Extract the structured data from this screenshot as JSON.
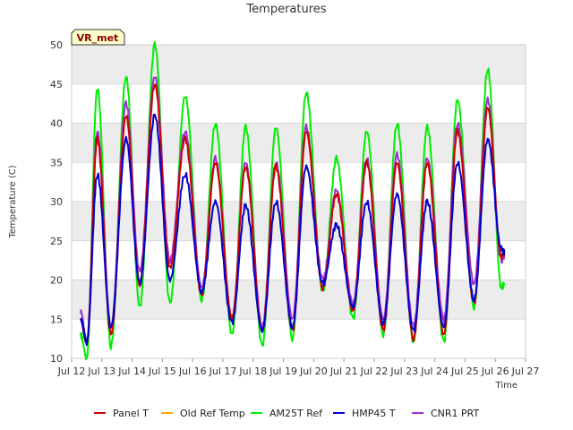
{
  "chart_data": {
    "type": "line",
    "title": "Temperatures",
    "xlabel": "Time",
    "ylabel": "Temperature (C)",
    "badge": "VR_met",
    "xlim": [
      12,
      27
    ],
    "ylim": [
      10,
      50
    ],
    "yticks": [
      10,
      15,
      20,
      25,
      30,
      35,
      40,
      45,
      50
    ],
    "xticks": [
      {
        "value": 12,
        "label": "Jul 12"
      },
      {
        "value": 13,
        "label": "Jul 13"
      },
      {
        "value": 14,
        "label": "Jul 14"
      },
      {
        "value": 15,
        "label": "Jul 15"
      },
      {
        "value": 16,
        "label": "Jul 16"
      },
      {
        "value": 17,
        "label": "Jul 17"
      },
      {
        "value": 18,
        "label": "Jul 18"
      },
      {
        "value": 19,
        "label": "Jul 19"
      },
      {
        "value": 20,
        "label": "Jul 20"
      },
      {
        "value": 21,
        "label": "Jul 21"
      },
      {
        "value": 22,
        "label": "Jul 22"
      },
      {
        "value": 23,
        "label": "Jul 23"
      },
      {
        "value": 24,
        "label": "Jul 24"
      },
      {
        "value": 25,
        "label": "Jul 25"
      },
      {
        "value": 26,
        "label": "Jul 26"
      },
      {
        "value": 27,
        "label": "Jul 27"
      }
    ],
    "band_color": "#ececec",
    "series": [
      {
        "name": "Panel T",
        "color": "#cc0000",
        "x": [
          12.3,
          12.5,
          12.85,
          13.3,
          13.8,
          14.25,
          14.75,
          15.25,
          15.75,
          16.3,
          16.75,
          17.3,
          17.75,
          18.3,
          18.75,
          19.3,
          19.75,
          20.3,
          20.75,
          21.3,
          21.75,
          22.3,
          22.75,
          23.3,
          23.75,
          24.3,
          24.75,
          25.3,
          25.75,
          26.2,
          26.3
        ],
        "y": [
          15,
          12,
          38,
          13,
          41,
          19.5,
          45,
          21.5,
          38,
          18,
          35,
          15,
          34.5,
          13.5,
          34.5,
          13.5,
          39,
          19,
          31,
          16,
          35,
          13.5,
          35,
          12.5,
          35,
          13,
          39,
          17,
          42,
          23,
          23.5
        ]
      },
      {
        "name": "Old Ref Temp",
        "color": "#ffa500",
        "x": [],
        "y": []
      },
      {
        "name": "AM25T Ref",
        "color": "#00ee00",
        "x": [
          12.3,
          12.5,
          12.85,
          13.3,
          13.8,
          14.25,
          14.75,
          15.25,
          15.75,
          16.3,
          16.75,
          17.3,
          17.75,
          18.3,
          18.75,
          19.3,
          19.75,
          20.3,
          20.75,
          21.3,
          21.75,
          22.3,
          22.75,
          23.3,
          23.75,
          24.3,
          24.75,
          25.3,
          25.75,
          26.2,
          26.3
        ],
        "y": [
          13,
          10,
          44.5,
          11.5,
          46,
          16.5,
          50,
          17,
          43.5,
          17.5,
          40,
          13,
          39.5,
          11.5,
          39.5,
          12.5,
          44,
          18.5,
          35.5,
          15,
          39,
          13,
          40,
          12,
          39.5,
          12,
          43,
          16.5,
          47,
          19,
          19.5
        ]
      },
      {
        "name": "HMP45 T",
        "color": "#0000cc",
        "x": [
          12.3,
          12.5,
          12.85,
          13.3,
          13.8,
          14.25,
          14.75,
          15.25,
          15.75,
          16.3,
          16.75,
          17.3,
          17.75,
          18.3,
          18.75,
          19.3,
          19.75,
          20.3,
          20.75,
          21.3,
          21.75,
          22.3,
          22.75,
          23.3,
          23.75,
          24.3,
          24.75,
          25.3,
          25.75,
          26.2,
          26.3
        ],
        "y": [
          15,
          12,
          33.5,
          14,
          38,
          19.5,
          41,
          20,
          33.5,
          18.5,
          30,
          14.5,
          29.5,
          13.5,
          30,
          14,
          34.5,
          19.5,
          27,
          16.5,
          30,
          14.5,
          31,
          13.5,
          30,
          14,
          35,
          17.5,
          38,
          24,
          23.5
        ]
      },
      {
        "name": "CNR1 PRT",
        "color": "#9a32cd",
        "x": [
          12.3,
          12.5,
          12.85,
          13.3,
          13.8,
          14.25,
          14.75,
          15.25,
          15.75,
          16.3,
          16.75,
          17.3,
          17.75,
          18.3,
          18.75,
          19.3,
          19.75,
          20.3,
          20.75,
          21.3,
          21.75,
          22.3,
          22.75,
          23.3,
          23.75,
          24.3,
          24.75,
          25.3,
          25.75,
          26.2,
          26.3
        ],
        "y": [
          16,
          12,
          39,
          14,
          42.5,
          21,
          46,
          22.5,
          39,
          19,
          35.5,
          15,
          35,
          14,
          35,
          15,
          39.5,
          20,
          31.5,
          17,
          35.5,
          15,
          36,
          14,
          35.5,
          15,
          40,
          19.5,
          43,
          22.5,
          23
        ]
      }
    ]
  }
}
